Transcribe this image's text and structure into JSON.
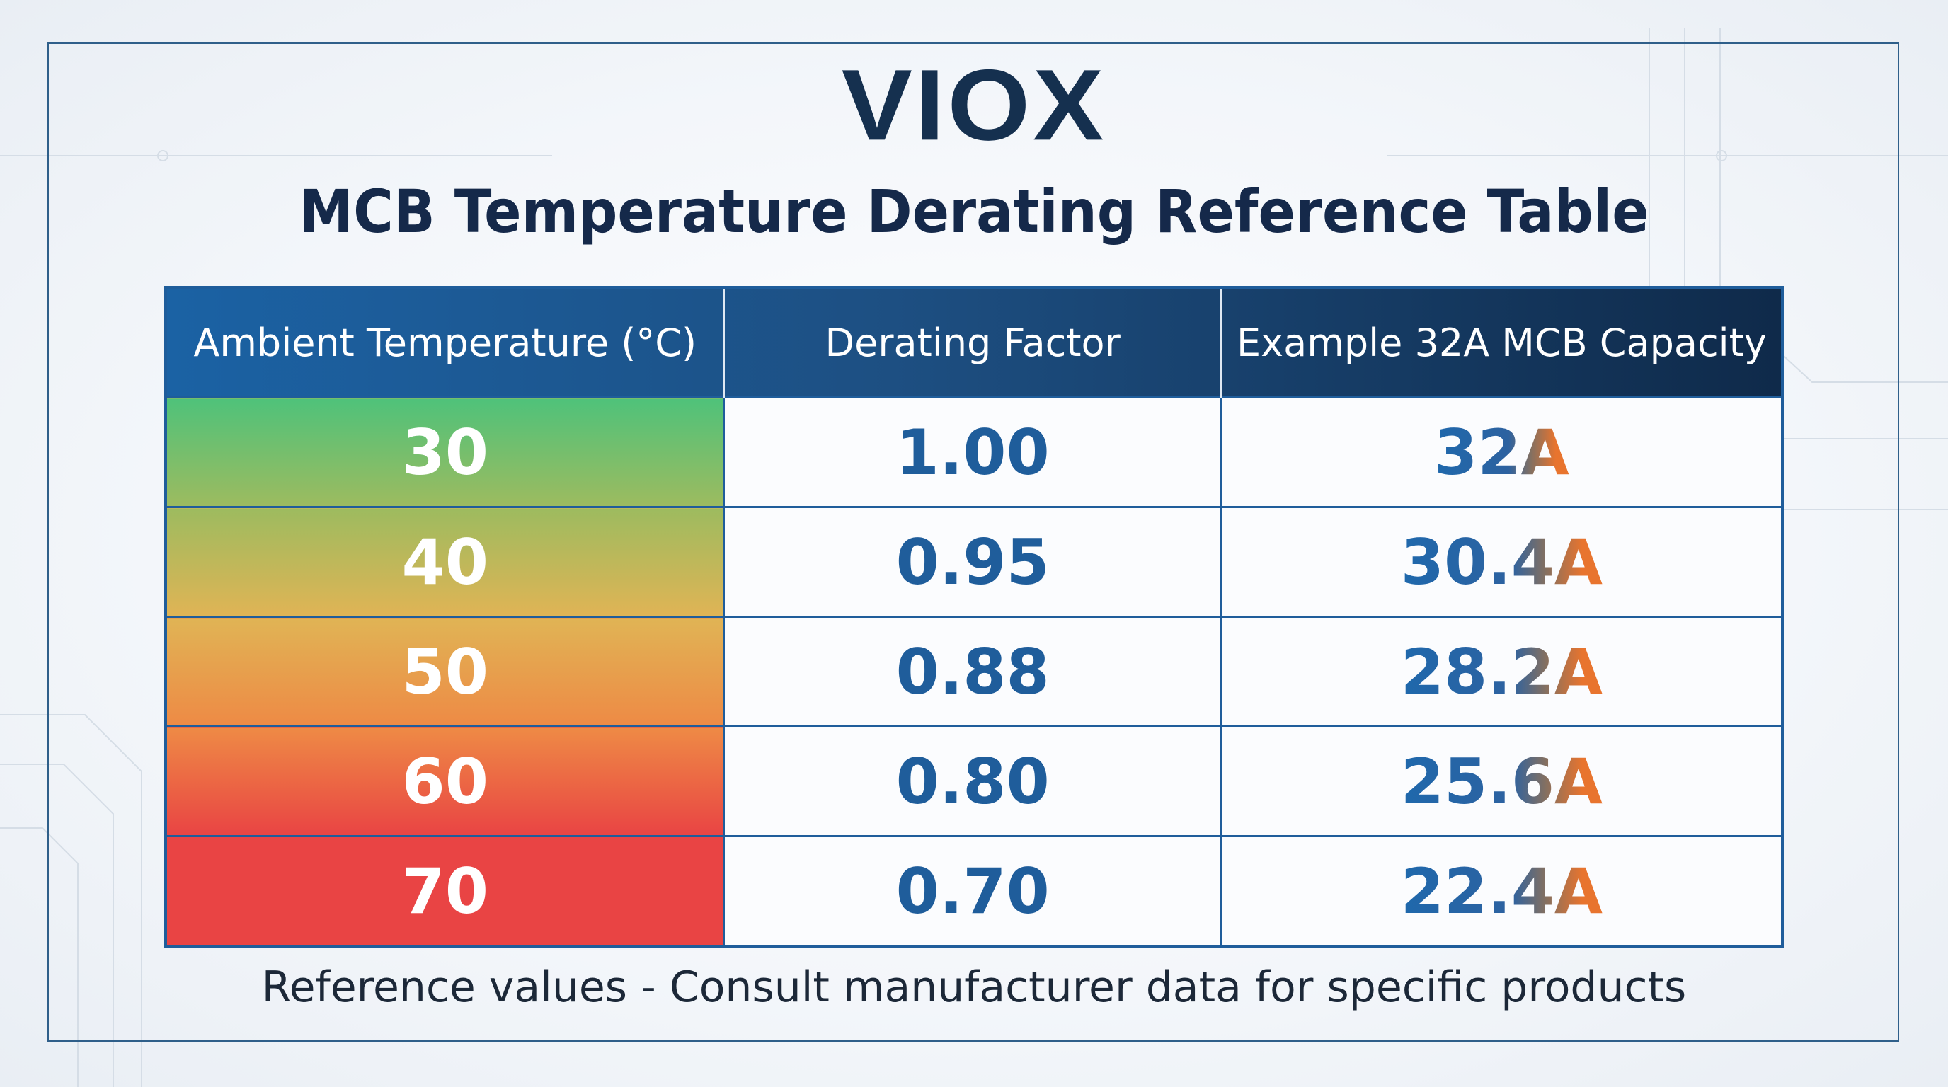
{
  "brand": {
    "logo": "VIOX"
  },
  "title": "MCB Temperature Derating Reference Table",
  "table": {
    "headers": [
      "Ambient Temperature (°C)",
      "Derating Factor",
      "Example 32A MCB Capacity"
    ],
    "rows": [
      {
        "temp": "30",
        "factor": "1.00",
        "capacity": "32A",
        "color": "#4fc27a"
      },
      {
        "temp": "40",
        "factor": "0.95",
        "capacity": "30.4A",
        "color": "#9dbb5f"
      },
      {
        "temp": "50",
        "factor": "0.88",
        "capacity": "28.2A",
        "color": "#e0b455"
      },
      {
        "temp": "60",
        "factor": "0.80",
        "capacity": "25.6A",
        "color": "#ee8a45"
      },
      {
        "temp": "70",
        "factor": "0.70",
        "capacity": "22.4A",
        "color": "#e94444"
      }
    ]
  },
  "footer": "Reference values - Consult manufacturer data for specific products",
  "colors": {
    "header_start": "#1b62a4",
    "header_end": "#0f2a4a",
    "border": "#1f5d9b",
    "value_blue": "#1f5d9b",
    "unit_orange": "#e8742e"
  }
}
